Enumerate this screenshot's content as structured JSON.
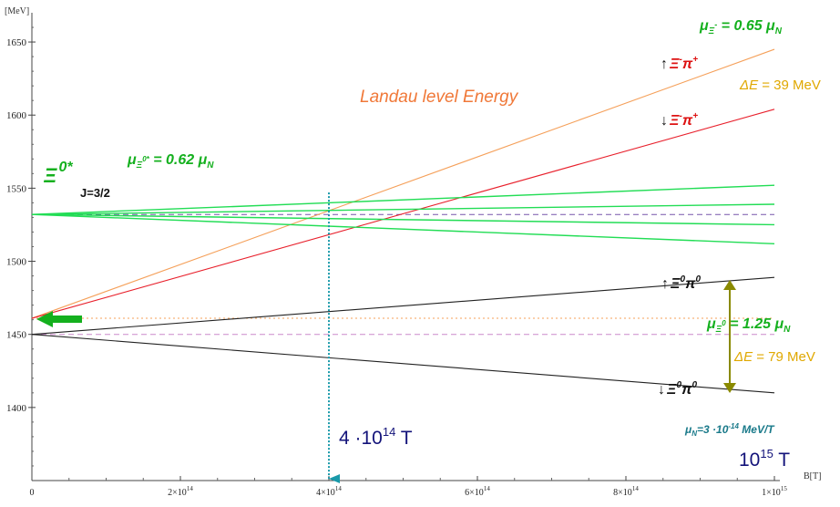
{
  "colors": {
    "orange": "#f5a05a",
    "red": "#e8202c",
    "green": "#22dd55",
    "green_dark": "#14b01e",
    "black": "#222222",
    "teal": "#1a9aaa",
    "olive": "#8a8a00",
    "navy": "#13137a",
    "pink_dash": "#cc88cc",
    "purple_dash": "#7755aa",
    "gold": "#e0a800",
    "label_red": "#dd1111"
  },
  "chart_data": {
    "type": "line",
    "xlabel": "B[T]",
    "ylabel": "[MeV]",
    "xlim": [
      0,
      1000000000000000.0
    ],
    "ylim": [
      1350,
      1670
    ],
    "x_ticks": [
      {
        "value": 0,
        "label": "0"
      },
      {
        "value": 200000000000000.0,
        "label": "2×10",
        "exp": "14"
      },
      {
        "value": 400000000000000.0,
        "label": "4×10",
        "exp": "14"
      },
      {
        "value": 600000000000000.0,
        "label": "6×10",
        "exp": "14"
      },
      {
        "value": 800000000000000.0,
        "label": "8×10",
        "exp": "14"
      },
      {
        "value": 1000000000000000.0,
        "label": "1×10",
        "exp": "15"
      }
    ],
    "y_ticks": [
      1400,
      1450,
      1500,
      1550,
      1600,
      1650
    ],
    "series": [
      {
        "key": "xi_minus_pi_up",
        "x": [
          0,
          1000000000000000.0
        ],
        "y": [
          1461,
          1645
        ],
        "color": "orange"
      },
      {
        "key": "xi_minus_pi_down",
        "x": [
          0,
          1000000000000000.0
        ],
        "y": [
          1461,
          1604
        ],
        "color": "red"
      },
      {
        "key": "xi0_pi0_up",
        "x": [
          0,
          1000000000000000.0
        ],
        "y": [
          1450,
          1489
        ],
        "color": "black"
      },
      {
        "key": "xi0_pi0_down",
        "x": [
          0,
          1000000000000000.0
        ],
        "y": [
          1450,
          1410
        ],
        "color": "black"
      },
      {
        "key": "xi_star_m32",
        "x": [
          0,
          1000000000000000.0
        ],
        "y": [
          1532,
          1552
        ],
        "color": "green"
      },
      {
        "key": "xi_star_m12",
        "x": [
          0,
          1000000000000000.0
        ],
        "y": [
          1532,
          1539
        ],
        "color": "green"
      },
      {
        "key": "xi_star_p12",
        "x": [
          0,
          1000000000000000.0
        ],
        "y": [
          1532,
          1525
        ],
        "color": "green"
      },
      {
        "key": "xi_star_p32",
        "x": [
          0,
          1000000000000000.0
        ],
        "y": [
          1532,
          1512
        ],
        "color": "green"
      }
    ],
    "reference_lines": [
      {
        "y": 1532,
        "style": "dashed",
        "color": "purple_dash"
      },
      {
        "y": 1461,
        "style": "dotted",
        "color": "orange"
      },
      {
        "y": 1450,
        "style": "dashed",
        "color": "pink_dash"
      }
    ],
    "vertical_marker": {
      "x": 400000000000000.0,
      "y_top": 1547
    },
    "annotations": {
      "landau": "Landau level Energy",
      "mu_xi_minus": {
        "main": "μ",
        "sub": "Ξ",
        "sub_sup": "-",
        "val": " = 0.65 μ",
        "val_sub": "N"
      },
      "xi_minus_up": {
        "arrow": "↑",
        "text": "Ξ",
        "sup1": "-",
        "text2": "π",
        "sup2": "+"
      },
      "xi_minus_down": {
        "arrow": "↓",
        "text": "Ξ",
        "sup1": "-",
        "text2": "π",
        "sup2": "+"
      },
      "delta_e_top": {
        "delta": "ΔE",
        "rest": " = 39 MeV"
      },
      "xi0_star": {
        "main": "Ξ",
        "sup": "0*",
        "spin": "J=3/2"
      },
      "mu_xi0_star": {
        "main": "μ",
        "sub": "Ξ",
        "sub_sup": "0*",
        "val": " = 0.62 μ",
        "val_sub": "N"
      },
      "xi0_up": {
        "arrow": "↑",
        "text": "Ξ",
        "sup1": "0",
        "text2": "π",
        "sup2": "0"
      },
      "xi0_down": {
        "arrow": "↓",
        "text": "Ξ",
        "sup1": "0",
        "text2": "π",
        "sup2": "0"
      },
      "mu_xi0": {
        "main": "μ",
        "sub": "Ξ",
        "sub_sup": "0",
        "val": " = 1.25 μ",
        "val_sub": "N"
      },
      "delta_e_bottom": {
        "delta": "ΔE",
        "rest": " = 79 MeV"
      },
      "mu_n": {
        "main": "μ",
        "sub": "N",
        "val": "=3 ·10",
        "val_exp": "-14",
        "unit": " MeV/T"
      },
      "b_marker": {
        "base": "4 ·10",
        "exp": "14",
        "unit": " T"
      },
      "b_max": {
        "base": "10",
        "exp": "15",
        "unit": " T"
      }
    }
  }
}
